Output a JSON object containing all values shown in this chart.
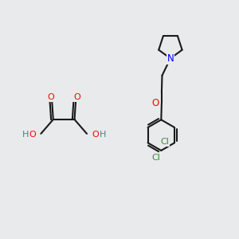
{
  "background_color": "#e8eaec",
  "bond_color": "#1a1a1a",
  "N_color": "#0000ff",
  "O_color": "#ff0000",
  "Cl_color": "#3a8a3a",
  "H_color": "#4a8585",
  "bond_width": 1.5,
  "font_size": 8.0,
  "xlim": [
    0,
    10
  ],
  "ylim": [
    0,
    10
  ]
}
